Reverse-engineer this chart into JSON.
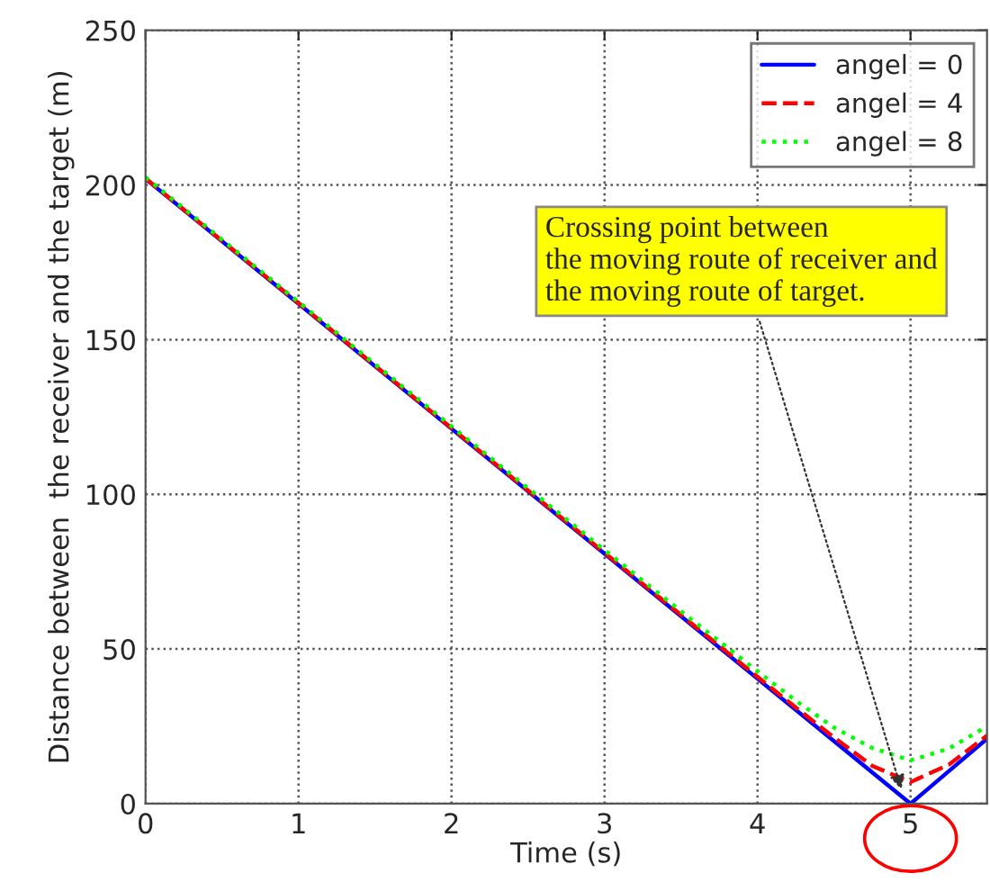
{
  "chart_data": {
    "type": "line",
    "xlabel": "Time (s)",
    "ylabel": "Distance between  the receiver and the target (m)",
    "x": [
      0,
      1,
      2,
      3,
      3.5,
      4,
      4.25,
      4.5,
      4.75,
      5,
      5.25,
      5.5
    ],
    "series": [
      {
        "name": "angel = 0",
        "color": "#0000ff",
        "line_style": "solid",
        "values": [
          202,
          161.6,
          121.2,
          80.8,
          60.6,
          40.4,
          30.3,
          20.2,
          10.1,
          0,
          10.5,
          21
        ]
      },
      {
        "name": "angel = 4",
        "color": "#ff0000",
        "line_style": "dashed",
        "values": [
          202.1,
          161.8,
          121.4,
          81.1,
          61.0,
          41.0,
          31.1,
          21.4,
          12.2,
          7,
          12.6,
          22
        ]
      },
      {
        "name": "angel = 8",
        "color": "#00ff00",
        "line_style": "dotted",
        "values": [
          202.5,
          162.2,
          122.0,
          82.0,
          62.2,
          42.8,
          33.3,
          24.6,
          18.0,
          14,
          17.8,
          25
        ]
      }
    ],
    "xlim": [
      0,
      5.5
    ],
    "xticks": [
      0,
      1,
      2,
      3,
      4,
      5
    ],
    "ylim": [
      0,
      250
    ],
    "yticks": [
      0,
      50,
      100,
      150,
      200,
      250
    ],
    "grid": true,
    "legend": "top right",
    "annotations": [
      {
        "text": "Crossing point between\nthe moving route of receiver and\nthe moving route of target.",
        "x": 4.95,
        "y": 3
      }
    ]
  }
}
